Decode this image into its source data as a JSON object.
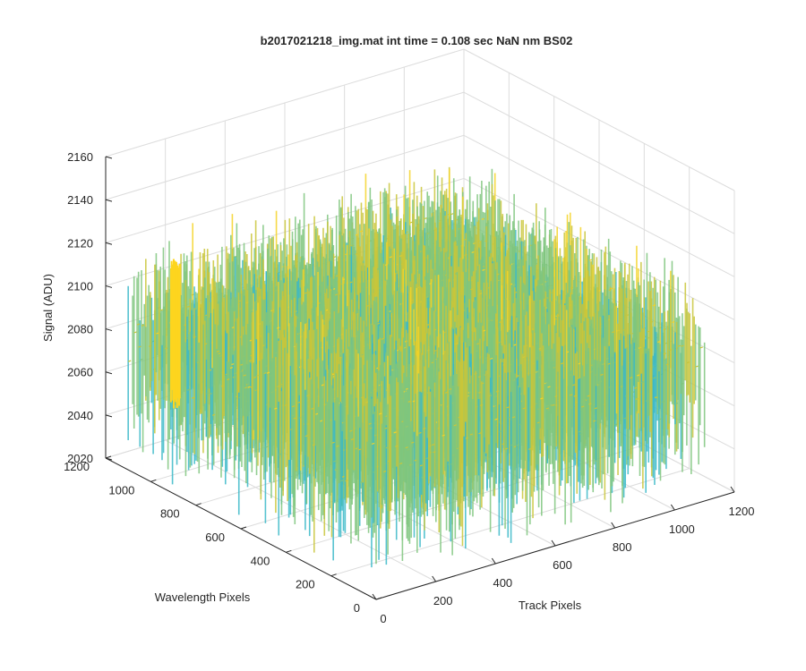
{
  "chart_data": {
    "type": "surface",
    "title": "b2017021218_img.mat int time = 0.108 sec  NaN nm BS02",
    "xlabel": "Track Pixels",
    "ylabel": "Wavelength Pixels",
    "zlabel": "Signal (ADU)",
    "xlim": [
      0,
      1200
    ],
    "ylim": [
      0,
      1200
    ],
    "zlim": [
      2020,
      2160
    ],
    "x_ticks": [
      0,
      200,
      400,
      600,
      800,
      1000,
      1200
    ],
    "y_ticks": [
      0,
      200,
      400,
      600,
      800,
      1000,
      1200
    ],
    "z_ticks": [
      2020,
      2040,
      2060,
      2080,
      2100,
      2120,
      2140,
      2160
    ],
    "grid": true,
    "colormap": [
      "#0072bd",
      "#1f96d6",
      "#39b8c8",
      "#7fc67e",
      "#c9c63a",
      "#f5d327"
    ],
    "surface_extent": {
      "x": [
        0,
        1100
      ],
      "y": [
        0,
        1100
      ]
    },
    "surface_mean": 2083,
    "surface_range": [
      2025,
      2150
    ],
    "bright_streak": {
      "x": 30,
      "y": 950,
      "value": 2120
    }
  }
}
